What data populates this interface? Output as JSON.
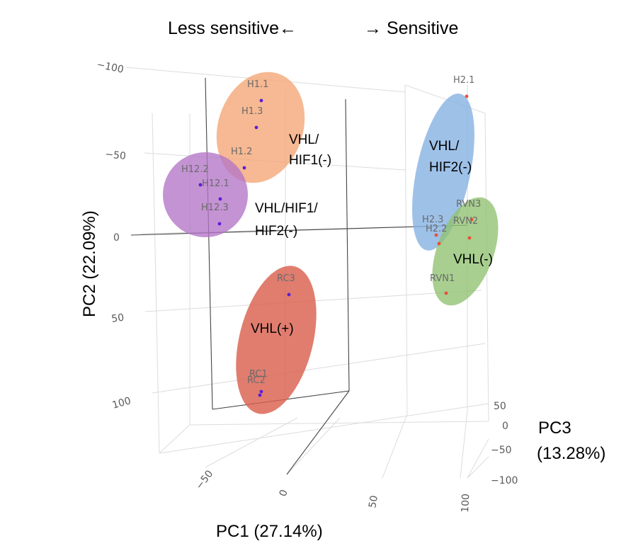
{
  "header": {
    "left": "Less sensitive←",
    "right": "→ Sensitive"
  },
  "chart_data": {
    "type": "scatter",
    "subtype": "3d-pca",
    "axes": {
      "x": {
        "label": "PC1 (27.14%)",
        "ticks": [
          "−50",
          "0",
          "50",
          "100"
        ]
      },
      "y": {
        "label": "PC2  (22.09%)",
        "ticks": [
          "−100",
          "−50",
          "0",
          "50",
          "100"
        ]
      },
      "z": {
        "label_line1": "PC3",
        "label_line2": "(13.28%)",
        "ticks": [
          "50",
          "0",
          "−50",
          "−100"
        ]
      }
    },
    "groups": [
      {
        "name_line1": "VHL/",
        "name_line2": "HIF1(-)",
        "color": "#f4a574"
      },
      {
        "name_line1": "VHL/HIF1/",
        "name_line2": "HIF2(-)",
        "color": "#b374c6"
      },
      {
        "name_line1": "VHL(+)",
        "name_line2": "",
        "color": "#d9604f"
      },
      {
        "name_line1": "VHL/",
        "name_line2": "HIF2(-)",
        "color": "#86b1e2"
      },
      {
        "name_line1": "VHL(-)",
        "name_line2": "",
        "color": "#8fc26f"
      }
    ],
    "points": [
      {
        "label": "H1.1",
        "color": "#5b1fd6"
      },
      {
        "label": "H1.3",
        "color": "#5b1fd6"
      },
      {
        "label": "H1.2",
        "color": "#5b1fd6"
      },
      {
        "label": "H12.2",
        "color": "#5b1fd6"
      },
      {
        "label": "H12.1",
        "color": "#5b1fd6"
      },
      {
        "label": "H12.3",
        "color": "#5b1fd6"
      },
      {
        "label": "RC3",
        "color": "#5b1fd6"
      },
      {
        "label": "RC1",
        "color": "#5b1fd6"
      },
      {
        "label": "RC2",
        "color": "#5b1fd6"
      },
      {
        "label": "H2.1",
        "color": "#e8503a"
      },
      {
        "label": "RVN3",
        "color": "#e8503a"
      },
      {
        "label": "H2.3",
        "color": "#e8503a"
      },
      {
        "label": "RVN2",
        "color": "#e8503a"
      },
      {
        "label": "H2.2",
        "color": "#e8503a"
      },
      {
        "label": "RVN1",
        "color": "#e8503a"
      }
    ]
  }
}
